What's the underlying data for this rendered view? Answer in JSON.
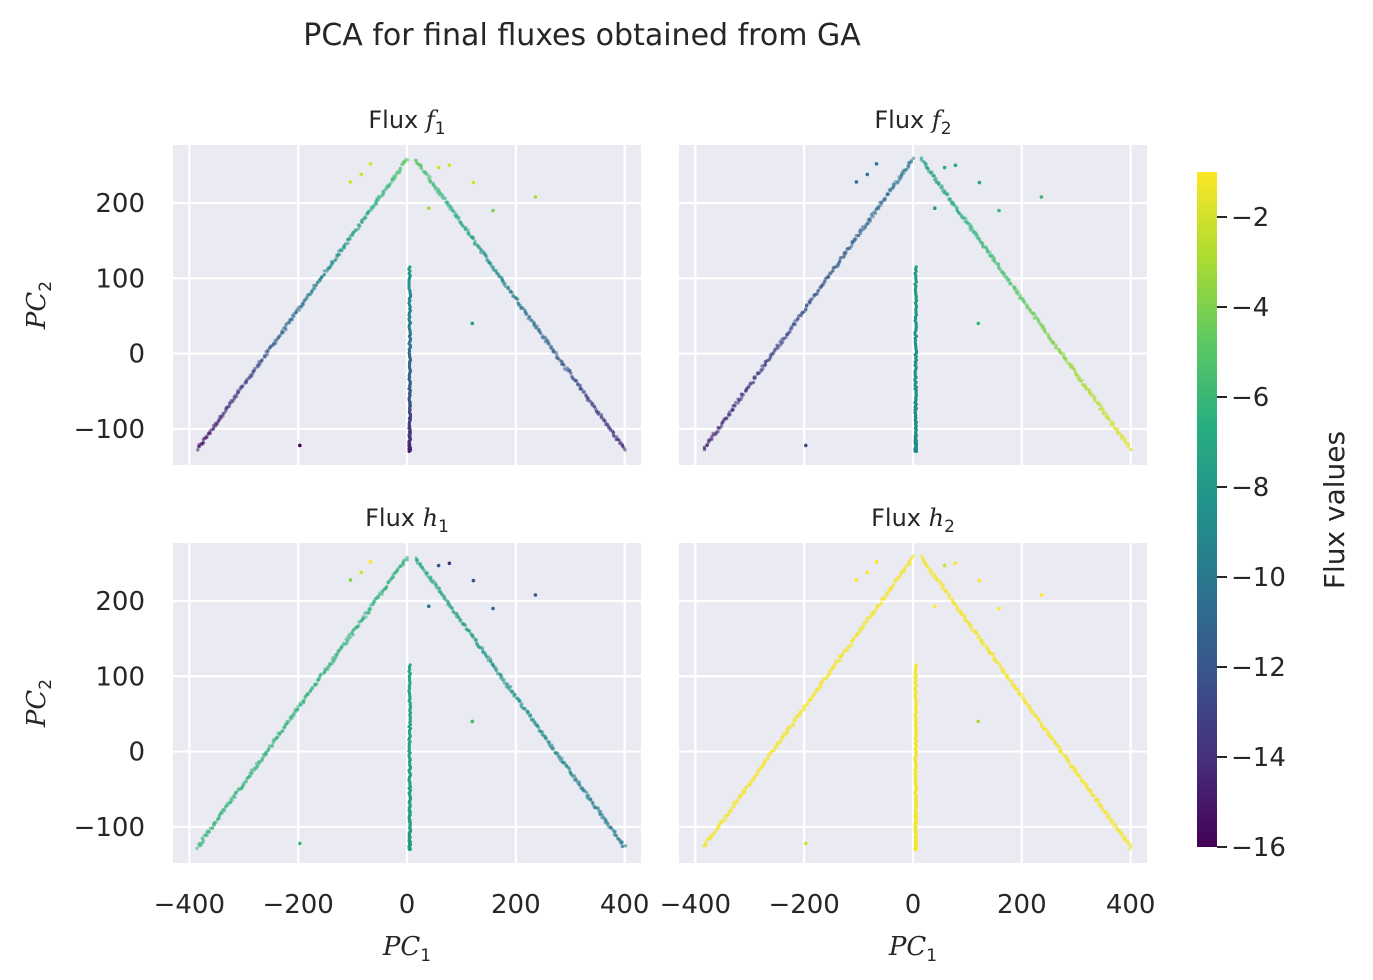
{
  "figure": {
    "title": "PCA for final fluxes obtained from GA",
    "colorbar_label": "Flux values",
    "colormap": "viridis",
    "background": "#eaeaf2",
    "grid_color": "#ffffff"
  },
  "chart_data": {
    "type": "scatter",
    "title": "PCA for final fluxes obtained from GA",
    "xlabel": "PC1",
    "ylabel": "PC2",
    "xlim": [
      -430,
      430
    ],
    "ylim": [
      -148,
      277
    ],
    "xticks": [
      -400,
      -200,
      0,
      200,
      400
    ],
    "yticks": [
      -100,
      0,
      100,
      200
    ],
    "xtick_labels": [
      "−400",
      "−200",
      "0",
      "200",
      "400"
    ],
    "ytick_labels": [
      "−100",
      "0",
      "100",
      "200"
    ],
    "colorbar": {
      "range": [
        -16,
        -1
      ],
      "ticks": [
        -2,
        -4,
        -6,
        -8,
        -10,
        -12,
        -14,
        -16
      ],
      "tick_labels": [
        "−2",
        "−4",
        "−6",
        "−8",
        "−10",
        "−12",
        "−14",
        "−16"
      ],
      "label": "Flux values"
    },
    "structure": {
      "left_arm": {
        "from": [
          -385,
          -127
        ],
        "to": [
          0,
          258
        ]
      },
      "right_arm": {
        "from": [
          15,
          258
        ],
        "to": [
          400,
          -127
        ]
      },
      "vertical_line": {
        "x": 5,
        "y_range": [
          -130,
          115
        ]
      }
    },
    "outliers": [
      {
        "x": -197,
        "y": -122
      },
      {
        "x": 120,
        "y": 40
      },
      {
        "x": -104,
        "y": 228
      },
      {
        "x": -84,
        "y": 238
      },
      {
        "x": -67,
        "y": 252
      },
      {
        "x": 40,
        "y": 193
      },
      {
        "x": 58,
        "y": 247
      },
      {
        "x": 78,
        "y": 250
      },
      {
        "x": 122,
        "y": 227
      },
      {
        "x": 158,
        "y": 190
      },
      {
        "x": 236,
        "y": 208
      }
    ],
    "panels": [
      {
        "title_prefix": "Flux ",
        "var": "f",
        "sub": "1",
        "left_arm_color": [
          -15.5,
          -5
        ],
        "right_arm_color": [
          -5,
          -14.5
        ],
        "vertical_color": [
          -8,
          -15
        ],
        "outlier_colors": [
          -16,
          -8,
          -2,
          -2,
          -2,
          -3,
          -2,
          -2,
          -2,
          -4,
          -3
        ]
      },
      {
        "title_prefix": "Flux ",
        "var": "f",
        "sub": "2",
        "left_arm_color": [
          -14.5,
          -10
        ],
        "right_arm_color": [
          -8,
          -1.5
        ],
        "vertical_color": [
          -8,
          -9
        ],
        "outlier_colors": [
          -13,
          -6,
          -10,
          -10,
          -10,
          -8,
          -7,
          -7,
          -7,
          -6,
          -6
        ]
      },
      {
        "title_prefix": "Flux ",
        "var": "h",
        "sub": "1",
        "left_arm_color": [
          -6.2,
          -6.5
        ],
        "right_arm_color": [
          -7,
          -10
        ],
        "vertical_color": [
          -7,
          -8
        ],
        "outlier_colors": [
          -6,
          -6,
          -4,
          -2,
          -1,
          -10,
          -12,
          -14,
          -12,
          -11,
          -12
        ]
      },
      {
        "title_prefix": "Flux ",
        "var": "h",
        "sub": "2",
        "left_arm_color": [
          -1.2,
          -1.2
        ],
        "right_arm_color": [
          -1.2,
          -1.2
        ],
        "vertical_color": [
          -1.2,
          -1.2
        ],
        "outlier_colors": [
          -2,
          -3,
          -1,
          -1,
          -1,
          -1,
          -2,
          -1,
          -1,
          -1,
          -1
        ]
      }
    ]
  }
}
